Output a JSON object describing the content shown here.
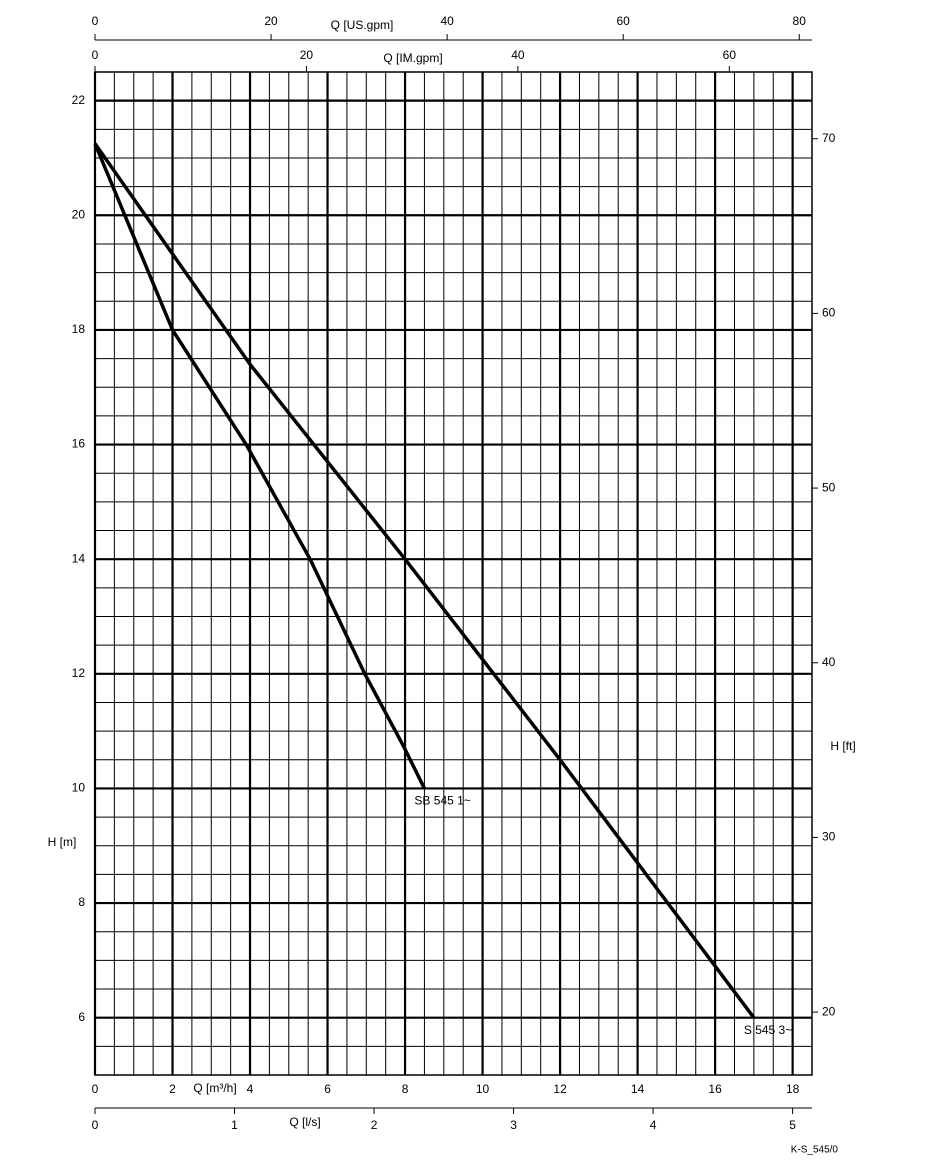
{
  "chart_data": {
    "type": "line",
    "xlabel": "Q [m³/h]",
    "ylabel": "H [m]",
    "xlim": [
      0,
      18.5
    ],
    "xticks": [
      0,
      2,
      4,
      6,
      8,
      10,
      12,
      14,
      16,
      18
    ],
    "ylim": [
      5,
      22.5
    ],
    "yticks": [
      6,
      8,
      10,
      12,
      14,
      16,
      18,
      20,
      22
    ],
    "x_minor_step": 0.5,
    "y_minor_step": 0.5,
    "grid": true,
    "y2label": "H [ft]",
    "y2lim": [
      16.4,
      73.82
    ],
    "y2ticks": [
      20,
      30,
      40,
      50,
      60,
      70
    ],
    "x2label": "Q [US.gpm]",
    "x2lim": [
      0,
      81.45
    ],
    "x2ticks": [
      0,
      20,
      40,
      60,
      80
    ],
    "x3label": "Q [IM.gpm]",
    "x3lim": [
      0,
      67.82
    ],
    "x3ticks": [
      0,
      20,
      40,
      60
    ],
    "x4label": "Q [l/s]",
    "x4lim": [
      0,
      5.139
    ],
    "x4ticks": [
      0,
      1,
      2,
      3,
      4,
      5
    ],
    "series": [
      {
        "name": "SB 545 1~",
        "color": "#000000",
        "x": [
          0,
          2,
          3.9,
          5.55,
          6.96,
          7.95,
          8.5
        ],
        "values": [
          21.25,
          18,
          16,
          14,
          12,
          10.75,
          10
        ]
      },
      {
        "name": "S 545 3~",
        "color": "#000000",
        "x": [
          0,
          4,
          8,
          12,
          17
        ],
        "values": [
          21.25,
          17.4,
          14,
          10.5,
          6
        ]
      }
    ],
    "footnote": "K-S_545/0"
  }
}
